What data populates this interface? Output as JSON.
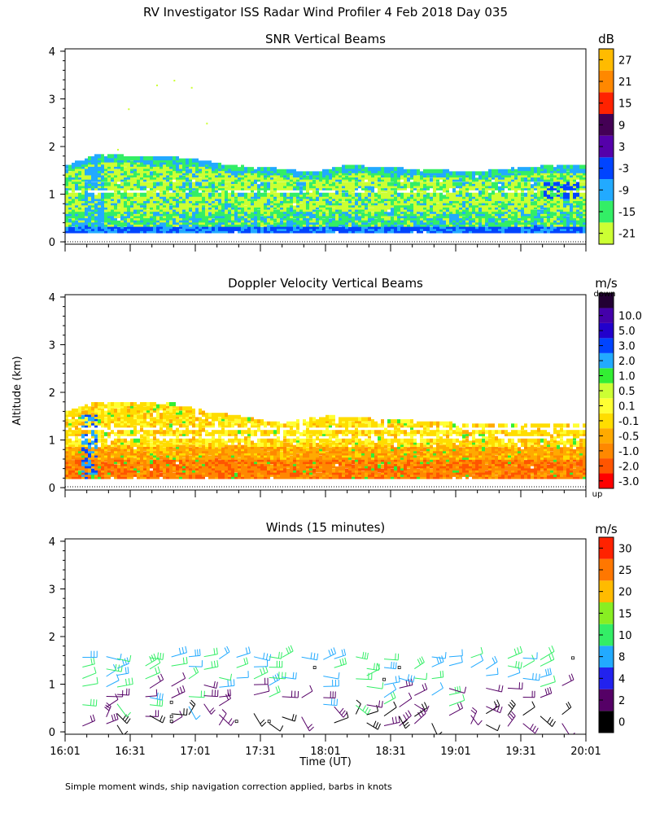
{
  "figure": {
    "title": "RV Investigator ISS Radar Wind Profiler    4 Feb 2018 Day 035",
    "shared_ylabel": "Altitude (km)",
    "xlabel": "Time (UT)",
    "footnote": "Simple moment winds, ship navigation correction applied, barbs in knots"
  },
  "colors": {
    "background": "#ffffff",
    "axis": "#000000",
    "snr_scale": [
      "#ccff33",
      "#33ee66",
      "#22aaff",
      "#0044ff",
      "#5500aa",
      "#440055",
      "#ff2200",
      "#ff8800",
      "#ffbb00"
    ],
    "doppler_scale": [
      "#ff0000",
      "#ff5500",
      "#ff8800",
      "#ffaa00",
      "#ffdd00",
      "#ffff33",
      "#ccff33",
      "#33ee33",
      "#22aaff",
      "#0044ff",
      "#2200cc",
      "#4400aa",
      "#220033"
    ],
    "winds_scale": [
      "#000000",
      "#550066",
      "#2222ee",
      "#22aaff",
      "#33ee66",
      "#88ee22",
      "#ffbb00",
      "#ff7700",
      "#ff2200"
    ]
  },
  "chart_data": [
    {
      "type": "heatmap",
      "id": "snr",
      "title": "SNR Vertical Beams",
      "ylabel": "Altitude (km)",
      "x_range": [
        "16:01",
        "20:01"
      ],
      "x_minutes_range": [
        961,
        1201
      ],
      "x_ticks": [
        961,
        991,
        1021,
        1051,
        1081,
        1111,
        1141,
        1171,
        1201
      ],
      "ylim": [
        0,
        4
      ],
      "y_ticks": [
        0,
        1,
        2,
        3,
        4
      ],
      "x_tick_labels_shown": false,
      "layer_top_km": [
        [
          961,
          1.55
        ],
        [
          975,
          1.78
        ],
        [
          990,
          1.75
        ],
        [
          1010,
          1.72
        ],
        [
          1025,
          1.65
        ],
        [
          1035,
          1.55
        ],
        [
          1055,
          1.5
        ],
        [
          1075,
          1.4
        ],
        [
          1090,
          1.55
        ],
        [
          1110,
          1.5
        ],
        [
          1130,
          1.45
        ],
        [
          1150,
          1.42
        ],
        [
          1170,
          1.5
        ],
        [
          1185,
          1.55
        ],
        [
          1201,
          1.55
        ]
      ],
      "layer_bottom_km": 0.18,
      "colorbar": {
        "unit": "dB",
        "colors_index": "snr_scale",
        "tick_labels": [
          "-21",
          "-15",
          "-9",
          "-3",
          "3",
          "9",
          "15",
          "21",
          "27"
        ]
      }
    },
    {
      "type": "heatmap",
      "id": "doppler",
      "title": "Doppler Velocity Vertical Beams",
      "ylabel": "Altitude (km)",
      "x_minutes_range": [
        961,
        1201
      ],
      "x_ticks": [
        961,
        991,
        1021,
        1051,
        1081,
        1111,
        1141,
        1171,
        1201
      ],
      "ylim": [
        0,
        4
      ],
      "y_ticks": [
        0,
        1,
        2,
        3,
        4
      ],
      "x_tick_labels_shown": false,
      "layer_top_km": [
        [
          961,
          1.55
        ],
        [
          975,
          1.75
        ],
        [
          990,
          1.75
        ],
        [
          1010,
          1.72
        ],
        [
          1025,
          1.55
        ],
        [
          1040,
          1.45
        ],
        [
          1060,
          1.3
        ],
        [
          1080,
          1.45
        ],
        [
          1100,
          1.4
        ],
        [
          1120,
          1.35
        ],
        [
          1140,
          1.3
        ],
        [
          1160,
          1.3
        ],
        [
          1180,
          1.3
        ],
        [
          1201,
          1.3
        ]
      ],
      "layer_bottom_km": 0.18,
      "colorbar": {
        "unit": "m/s",
        "top_note": "down",
        "bottom_note": "up",
        "colors_index": "doppler_scale",
        "tick_labels": [
          "-3.0",
          "-2.0",
          "-1.0",
          "-0.5",
          "-0.1",
          "0.1",
          "0.5",
          "1.0",
          "2.0",
          "3.0",
          "5.0",
          "10.0"
        ]
      }
    },
    {
      "type": "scatter",
      "id": "winds",
      "title": "Winds (15 minutes)",
      "ylabel": "Altitude (km)",
      "x_minutes_range": [
        961,
        1201
      ],
      "x_ticks": [
        961,
        991,
        1021,
        1051,
        1081,
        1111,
        1141,
        1171,
        1201
      ],
      "x_tick_labels": [
        "16:01",
        "16:31",
        "17:01",
        "17:31",
        "18:01",
        "18:31",
        "19:01",
        "19:31",
        "20:01"
      ],
      "ylim": [
        0,
        4
      ],
      "y_ticks": [
        0,
        1,
        2,
        3,
        4
      ],
      "profile_times_min": [
        969,
        980,
        985,
        998,
        1000,
        1010,
        1018,
        1025,
        1032,
        1040,
        1048,
        1055,
        1061,
        1070,
        1080,
        1085,
        1095,
        1100,
        1108,
        1115,
        1122,
        1130,
        1138,
        1148,
        1155,
        1165,
        1172,
        1180,
        1190
      ],
      "barb_heights_km": [
        0.15,
        0.35,
        0.55,
        0.75,
        0.95,
        1.15,
        1.35,
        1.55
      ],
      "colorbar": {
        "unit": "m/s",
        "colors_index": "winds_scale",
        "tick_labels": [
          "0",
          "2",
          "4",
          "8",
          "10",
          "15",
          "20",
          "25",
          "30"
        ]
      }
    }
  ]
}
